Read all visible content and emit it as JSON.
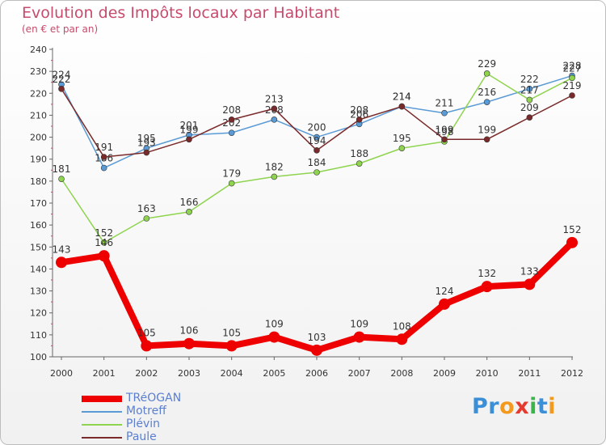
{
  "header": {
    "title": "Evolution des Impôts locaux par Habitant",
    "subtitle": "(en € et par an)"
  },
  "brand": {
    "letters": [
      {
        "ch": "P",
        "color": "#3a8fd6"
      },
      {
        "ch": "r",
        "color": "#3a8fd6"
      },
      {
        "ch": "o",
        "color": "#f39a1e"
      },
      {
        "ch": "x",
        "color": "#e63a2e"
      },
      {
        "ch": "i",
        "color": "#39b54a"
      },
      {
        "ch": "t",
        "color": "#3a8fd6"
      },
      {
        "ch": "i",
        "color": "#f39a1e"
      }
    ]
  },
  "chart_data": {
    "type": "line",
    "title": "Evolution des Impôts locaux par Habitant",
    "ylabel": "(en € et par an)",
    "xlabel": "",
    "ylim": [
      100,
      240
    ],
    "ytick_step": 10,
    "grid": false,
    "legend_position": "bottom-left",
    "categories": [
      "2000",
      "2001",
      "2002",
      "2003",
      "2004",
      "2005",
      "2006",
      "2007",
      "2008",
      "2009",
      "2010",
      "2011",
      "2012"
    ],
    "series": [
      {
        "name": "TRéOGAN",
        "color": "#ee0000",
        "emphasis": true,
        "values": [
          143,
          146,
          105,
          106,
          105,
          109,
          103,
          109,
          108,
          124,
          132,
          133,
          152
        ]
      },
      {
        "name": "Motreff",
        "color": "#5b9bd5",
        "emphasis": false,
        "values": [
          224,
          186,
          195,
          201,
          202,
          208,
          200,
          206,
          214,
          211,
          216,
          222,
          228
        ]
      },
      {
        "name": "Plévin",
        "color": "#8fd44f",
        "emphasis": false,
        "values": [
          181,
          152,
          163,
          166,
          179,
          182,
          184,
          188,
          195,
          198,
          229,
          217,
          227
        ]
      },
      {
        "name": "Paule",
        "color": "#7a2a2a",
        "emphasis": false,
        "values": [
          222,
          191,
          193,
          199,
          208,
          213,
          194,
          208,
          214,
          199,
          199,
          209,
          219
        ]
      }
    ]
  }
}
